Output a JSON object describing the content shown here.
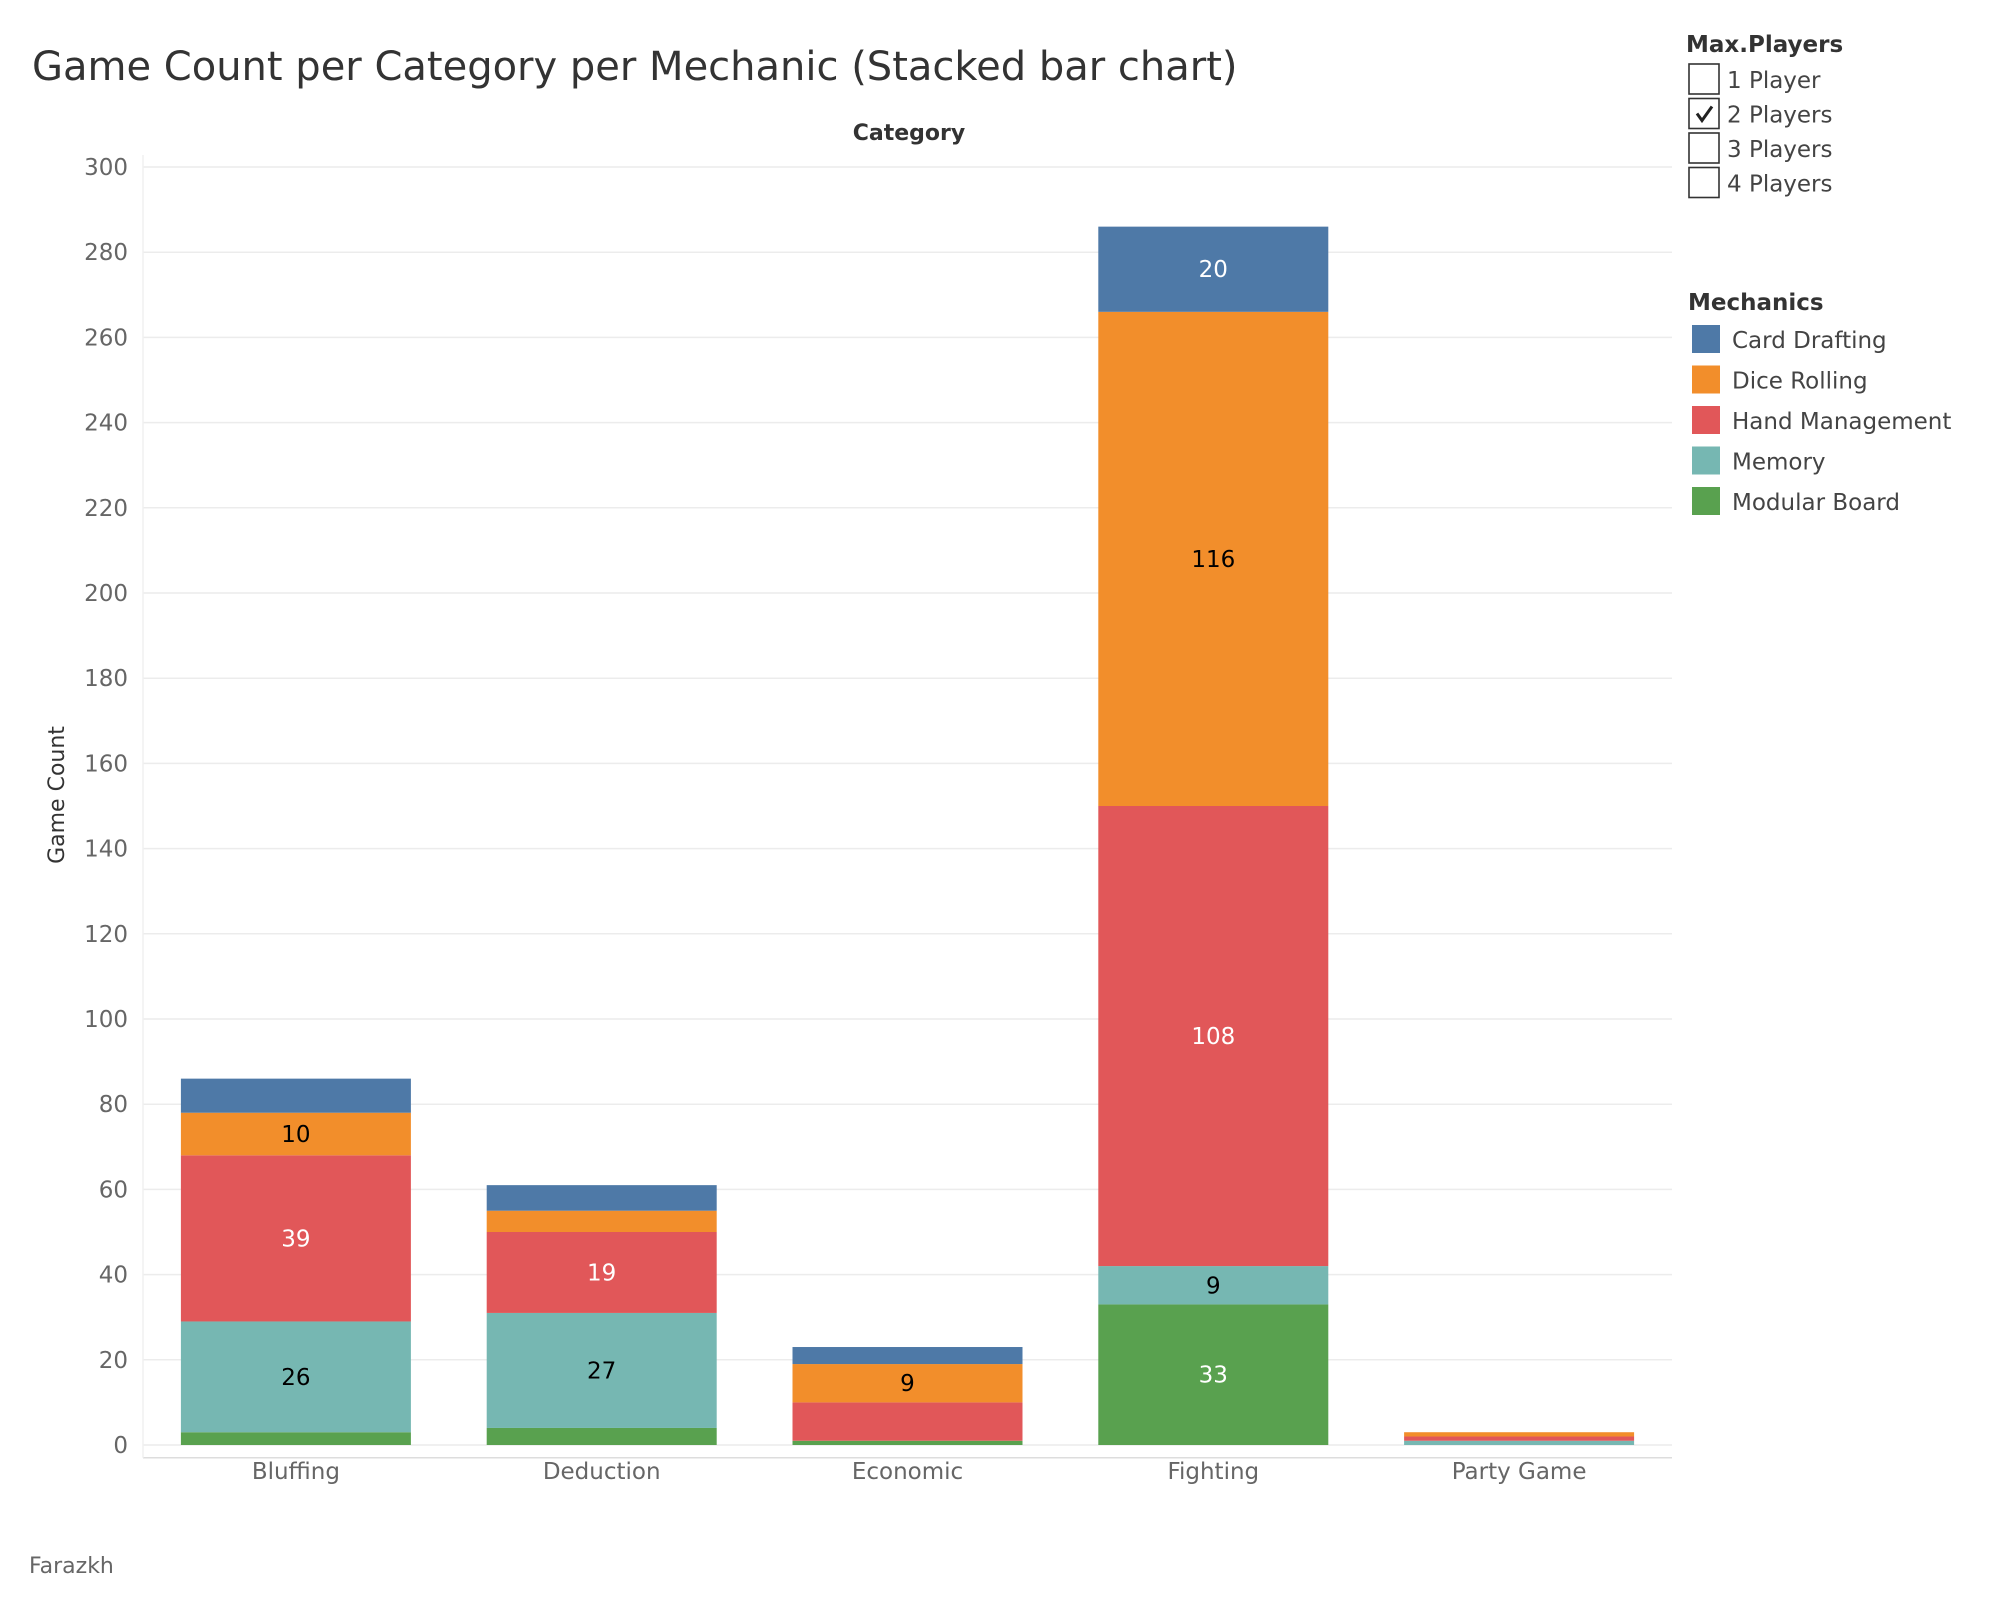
{
  "chart_data": {
    "type": "bar",
    "stacked": true,
    "title": "Game Count per Category per Mechanic (Stacked bar chart)",
    "column_header": "Category",
    "ylabel": "Game Count",
    "xlabel": "",
    "ylim": [
      -3,
      300
    ],
    "yticks": [
      0,
      20,
      40,
      60,
      80,
      100,
      120,
      140,
      160,
      180,
      200,
      220,
      240,
      260,
      280,
      300
    ],
    "grid": true,
    "categories": [
      "Bluffing",
      "Deduction",
      "Economic",
      "Fighting",
      "Party Game"
    ],
    "series": [
      {
        "name": "Modular Board",
        "color": "#59a14f",
        "values": [
          3,
          4,
          1,
          33,
          0
        ],
        "labels": [
          "",
          "",
          "",
          "33",
          ""
        ],
        "label_colors": [
          "",
          "",
          "",
          "#ffffff",
          ""
        ]
      },
      {
        "name": "Memory",
        "color": "#76b7b2",
        "values": [
          26,
          27,
          0,
          9,
          1
        ],
        "labels": [
          "26",
          "27",
          "",
          "9",
          ""
        ],
        "label_colors": [
          "#000000",
          "#000000",
          "",
          "#000000",
          ""
        ]
      },
      {
        "name": "Hand Management",
        "color": "#e15759",
        "values": [
          39,
          19,
          9,
          108,
          1
        ],
        "labels": [
          "39",
          "19",
          "",
          "108",
          ""
        ],
        "label_colors": [
          "#ffffff",
          "#ffffff",
          "",
          "#ffffff",
          ""
        ]
      },
      {
        "name": "Dice Rolling",
        "color": "#f28e2b",
        "values": [
          10,
          5,
          9,
          116,
          1
        ],
        "labels": [
          "10",
          "",
          "9",
          "116",
          ""
        ],
        "label_colors": [
          "#000000",
          "",
          "#000000",
          "#000000",
          ""
        ]
      },
      {
        "name": "Card Drafting",
        "color": "#4e79a7",
        "values": [
          8,
          6,
          4,
          20,
          0
        ],
        "labels": [
          "",
          "",
          "",
          "20",
          ""
        ],
        "label_colors": [
          "",
          "",
          "",
          "#ffffff",
          ""
        ]
      }
    ],
    "legend_order": [
      "Card Drafting",
      "Dice Rolling",
      "Hand Management",
      "Memory",
      "Modular Board"
    ],
    "legend_title": "Mechanics",
    "legend_placement": "right",
    "filter": {
      "title": "Max.Players",
      "options": [
        {
          "label": "1 Player",
          "checked": false
        },
        {
          "label": "2 Players",
          "checked": true
        },
        {
          "label": "3 Players",
          "checked": false
        },
        {
          "label": "4 Players",
          "checked": false
        }
      ]
    },
    "credit": "Farazkh"
  }
}
